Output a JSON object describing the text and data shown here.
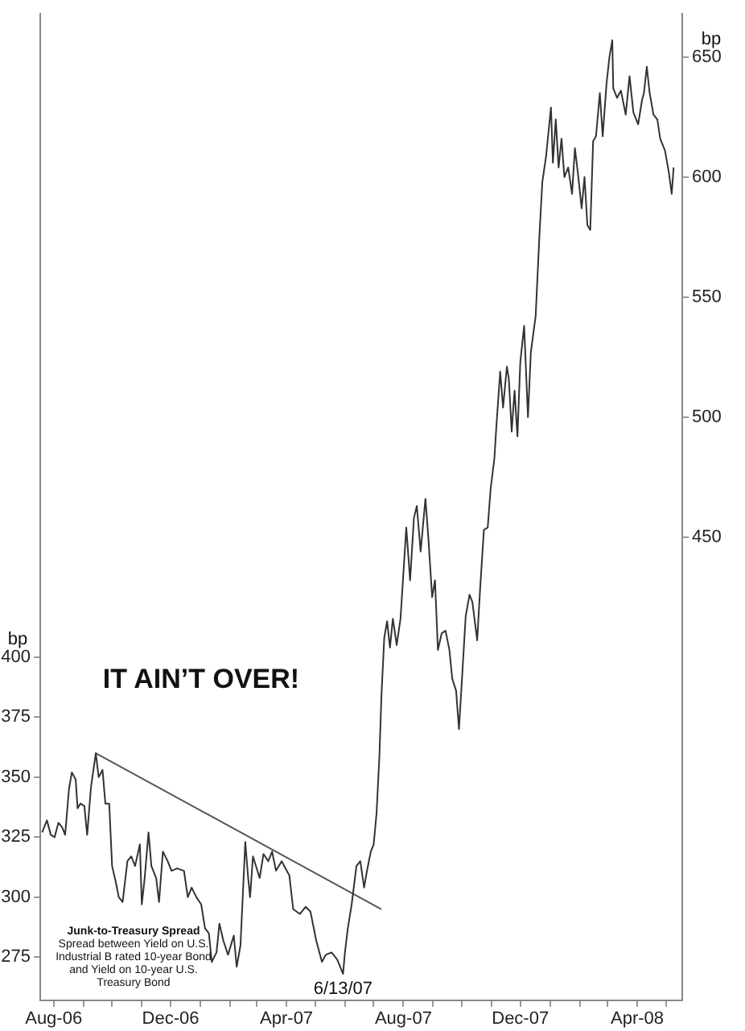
{
  "chart_data": {
    "type": "line",
    "title": "IT AIN’T OVER!",
    "ylabel": "bp",
    "y2label": "bp",
    "annotations": [
      "Junk-to-Treasury Spread",
      "Spread between Yield on U.S. Industrial B rated 10-year Bond and Yield on 10-year U.S. Treasury Bond",
      {
        "text": "6/13/07",
        "x": "2007-06-13",
        "y": 268
      }
    ],
    "xlim": [
      "2006-08-01",
      "2008-06-01"
    ],
    "xticks": [
      {
        "value": "2006-08-15",
        "label": "Aug-06"
      },
      {
        "value": "2006-09-15",
        "label": null
      },
      {
        "value": "2006-10-15",
        "label": null
      },
      {
        "value": "2006-11-15",
        "label": null
      },
      {
        "value": "2006-12-15",
        "label": "Dec-06"
      },
      {
        "value": "2007-01-15",
        "label": null
      },
      {
        "value": "2007-02-15",
        "label": null
      },
      {
        "value": "2007-03-15",
        "label": null
      },
      {
        "value": "2007-04-15",
        "label": "Apr-07"
      },
      {
        "value": "2007-05-15",
        "label": null
      },
      {
        "value": "2007-06-15",
        "label": null
      },
      {
        "value": "2007-07-15",
        "label": null
      },
      {
        "value": "2007-08-15",
        "label": "Aug-07"
      },
      {
        "value": "2007-09-15",
        "label": null
      },
      {
        "value": "2007-10-15",
        "label": null
      },
      {
        "value": "2007-11-15",
        "label": null
      },
      {
        "value": "2007-12-15",
        "label": "Dec-07"
      },
      {
        "value": "2008-01-15",
        "label": null
      },
      {
        "value": "2008-02-15",
        "label": null
      },
      {
        "value": "2008-03-15",
        "label": null
      },
      {
        "value": "2008-04-15",
        "label": "Apr-08"
      },
      {
        "value": "2008-05-15",
        "label": null
      }
    ],
    "ylim": [
      257,
      668
    ],
    "yticks": [
      275,
      300,
      325,
      350,
      375,
      400
    ],
    "y2lim": [
      257,
      668
    ],
    "y2ticks": [
      450,
      500,
      550,
      600,
      650
    ],
    "grid": false,
    "legend": false,
    "marker": "none",
    "line_style": "solid",
    "series": [
      {
        "type": "line",
        "color": "#333333",
        "x": [
          "2006-08-03",
          "2006-08-08",
          "2006-08-12",
          "2006-08-16",
          "2006-08-20",
          "2006-08-24",
          "2006-08-27",
          "2006-08-31",
          "2006-09-03",
          "2006-09-07",
          "2006-09-09",
          "2006-09-12",
          "2006-09-16",
          "2006-09-19",
          "2006-09-23",
          "2006-09-28",
          "2006-10-01",
          "2006-10-05",
          "2006-10-08",
          "2006-10-12",
          "2006-10-15",
          "2006-10-19",
          "2006-10-22",
          "2006-10-26",
          "2006-10-31",
          "2006-11-04",
          "2006-11-08",
          "2006-11-13",
          "2006-11-15",
          "2006-11-18",
          "2006-11-22",
          "2006-11-25",
          "2006-11-30",
          "2006-12-03",
          "2006-12-07",
          "2006-12-12",
          "2006-12-16",
          "2006-12-22",
          "2006-12-29",
          "2007-01-02",
          "2007-01-06",
          "2007-01-11",
          "2007-01-16",
          "2007-01-20",
          "2007-01-24",
          "2007-01-27",
          "2007-02-01",
          "2007-02-04",
          "2007-02-08",
          "2007-02-13",
          "2007-02-19",
          "2007-02-22",
          "2007-02-26",
          "2007-03-03",
          "2007-03-06",
          "2007-03-08",
          "2007-03-11",
          "2007-03-18",
          "2007-03-22",
          "2007-03-27",
          "2007-03-31",
          "2007-04-04",
          "2007-04-10",
          "2007-04-18",
          "2007-04-22",
          "2007-04-29",
          "2007-05-05",
          "2007-05-10",
          "2007-05-16",
          "2007-05-22",
          "2007-05-26",
          "2007-06-01",
          "2007-06-07",
          "2007-06-13",
          "2007-06-15",
          "2007-06-18",
          "2007-06-22",
          "2007-06-27",
          "2007-07-01",
          "2007-07-05",
          "2007-07-08",
          "2007-07-12",
          "2007-07-15",
          "2007-07-18",
          "2007-07-21",
          "2007-07-23",
          "2007-07-26",
          "2007-07-29",
          "2007-08-01",
          "2007-08-04",
          "2007-08-08",
          "2007-08-12",
          "2007-08-18",
          "2007-08-22",
          "2007-08-26",
          "2007-08-29",
          "2007-09-02",
          "2007-09-07",
          "2007-09-10",
          "2007-09-14",
          "2007-09-17",
          "2007-09-20",
          "2007-09-24",
          "2007-09-28",
          "2007-10-02",
          "2007-10-05",
          "2007-10-09",
          "2007-10-12",
          "2007-10-15",
          "2007-10-19",
          "2007-10-23",
          "2007-10-26",
          "2007-10-31",
          "2007-11-03",
          "2007-11-07",
          "2007-11-11",
          "2007-11-14",
          "2007-11-18",
          "2007-11-20",
          "2007-11-24",
          "2007-11-27",
          "2007-12-01",
          "2007-12-03",
          "2007-12-06",
          "2007-12-09",
          "2007-12-12",
          "2007-12-15",
          "2007-12-19",
          "2007-12-23",
          "2007-12-26",
          "2007-12-31",
          "2008-01-04",
          "2008-01-07",
          "2008-01-11",
          "2008-01-16",
          "2008-01-18",
          "2008-01-21",
          "2008-01-24",
          "2008-01-27",
          "2008-01-30",
          "2008-02-03",
          "2008-02-07",
          "2008-02-10",
          "2008-02-13",
          "2008-02-17",
          "2008-02-20",
          "2008-02-23",
          "2008-02-26",
          "2008-02-29",
          "2008-03-03",
          "2008-03-07",
          "2008-03-10",
          "2008-03-14",
          "2008-03-17",
          "2008-03-20",
          "2008-03-21",
          "2008-03-25",
          "2008-03-29",
          "2008-04-03",
          "2008-04-07",
          "2008-04-11",
          "2008-04-16",
          "2008-04-20",
          "2008-04-22",
          "2008-04-25",
          "2008-04-28",
          "2008-05-02",
          "2008-05-06",
          "2008-05-09",
          "2008-05-14",
          "2008-05-18",
          "2008-05-21",
          "2008-05-23"
        ],
        "values": [
          327,
          332,
          326,
          325,
          331,
          329,
          326,
          345,
          352,
          349,
          337,
          339,
          338,
          326,
          346,
          360,
          350,
          353,
          339,
          339,
          313,
          306,
          300,
          298,
          315,
          317,
          313,
          322,
          297,
          308,
          327,
          313,
          308,
          298,
          319,
          315,
          311,
          312,
          311,
          300,
          304,
          300,
          297,
          287,
          285,
          273,
          277,
          289,
          282,
          276,
          284,
          271,
          280,
          323,
          308,
          300,
          317,
          308,
          318,
          315,
          319,
          311,
          315,
          309,
          295,
          293,
          296,
          294,
          282,
          273,
          276,
          277,
          274,
          268,
          277,
          287,
          297,
          313,
          315,
          304,
          311,
          319,
          322,
          335,
          359,
          383,
          408,
          415,
          404,
          416,
          405,
          416,
          454,
          432,
          458,
          463,
          444,
          466,
          450,
          425,
          432,
          403,
          410,
          411,
          403,
          391,
          386,
          370,
          390,
          417,
          426,
          423,
          407,
          428,
          453,
          454,
          470,
          483,
          496,
          519,
          504,
          521,
          516,
          494,
          511,
          492,
          523,
          538,
          500,
          527,
          542,
          576,
          598,
          609,
          629,
          606,
          624,
          604,
          616,
          600,
          604,
          593,
          612,
          602,
          587,
          600,
          580,
          578,
          615,
          617,
          635,
          617,
          639,
          650,
          657,
          637,
          633,
          636,
          626,
          642,
          627,
          622,
          632,
          635,
          646,
          635,
          626,
          624,
          616,
          611,
          602,
          593,
          604
        ]
      },
      {
        "type": "line",
        "color": "#555555",
        "x": [
          "2006-09-28",
          "2007-07-23"
        ],
        "values": [
          360,
          295
        ]
      }
    ]
  }
}
